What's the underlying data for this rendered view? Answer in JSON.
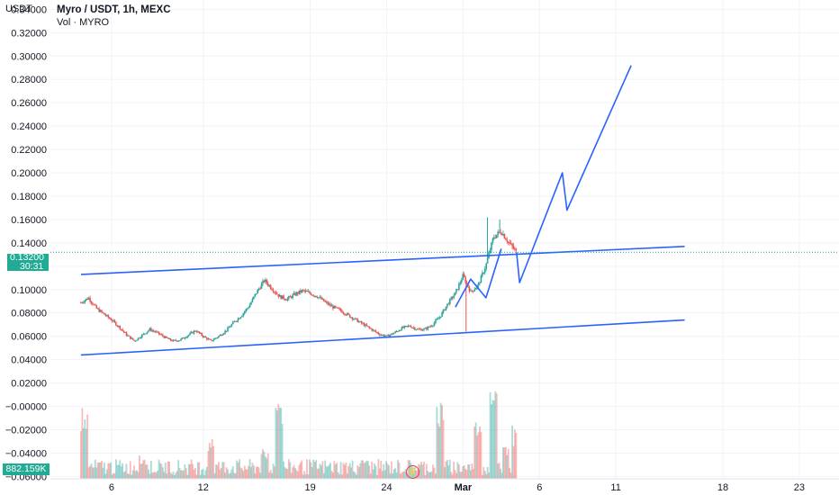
{
  "header": {
    "currency": "USDT",
    "title": "Myro / USDT, 1h, MEXC",
    "volume_label": "Vol · MYRO"
  },
  "price_tag": {
    "price": "0.13200",
    "countdown": "30:31"
  },
  "volume_tag": "882.159K",
  "colors": {
    "up": "#26a69a",
    "down": "#ef5350",
    "drawing": "#2962ff",
    "price_line": "#22ab94",
    "grid": "#f0f3fa"
  },
  "icons": {
    "replay": "lightning-icon"
  },
  "chart_data": {
    "type": "candlestick",
    "title": "Myro / USDT, 1h, MEXC",
    "y_axis": {
      "ticks": [
        "0.34000",
        "0.32000",
        "0.30000",
        "0.28000",
        "0.26000",
        "0.24000",
        "0.22000",
        "0.20000",
        "0.18000",
        "0.16000",
        "0.14000",
        "0.12000",
        "0.10000",
        "0.08000",
        "0.06000",
        "0.04000",
        "0.02000",
        "−0.00000",
        "−0.02000",
        "−0.04000",
        "−0.06000"
      ],
      "tick_values": [
        0.34,
        0.32,
        0.3,
        0.28,
        0.26,
        0.24,
        0.22,
        0.2,
        0.18,
        0.16,
        0.14,
        0.12,
        0.1,
        0.08,
        0.06,
        0.04,
        0.02,
        0.0,
        -0.02,
        -0.04,
        -0.06
      ],
      "range": [
        -0.062,
        0.348
      ]
    },
    "x_axis": {
      "ticks": [
        "6",
        "12",
        "19",
        "24",
        "Mar",
        "6",
        "11",
        "18",
        "23"
      ],
      "tick_days": [
        6,
        12,
        19,
        24,
        29,
        34,
        39,
        46,
        51
      ]
    },
    "current_price": 0.132,
    "price_path": [
      [
        4.0,
        0.089
      ],
      [
        4.5,
        0.093
      ],
      [
        5.0,
        0.084
      ],
      [
        5.5,
        0.079
      ],
      [
        6.0,
        0.074
      ],
      [
        6.5,
        0.068
      ],
      [
        7.0,
        0.061
      ],
      [
        7.5,
        0.056
      ],
      [
        8.0,
        0.061
      ],
      [
        8.5,
        0.066
      ],
      [
        9.0,
        0.063
      ],
      [
        9.5,
        0.059
      ],
      [
        10.0,
        0.056
      ],
      [
        10.5,
        0.057
      ],
      [
        11.0,
        0.061
      ],
      [
        11.5,
        0.065
      ],
      [
        12.0,
        0.06
      ],
      [
        12.5,
        0.056
      ],
      [
        13.0,
        0.06
      ],
      [
        13.5,
        0.065
      ],
      [
        14.0,
        0.072
      ],
      [
        14.5,
        0.078
      ],
      [
        15.0,
        0.086
      ],
      [
        15.5,
        0.098
      ],
      [
        16.0,
        0.108
      ],
      [
        16.5,
        0.101
      ],
      [
        17.0,
        0.094
      ],
      [
        17.5,
        0.092
      ],
      [
        18.0,
        0.096
      ],
      [
        18.5,
        0.099
      ],
      [
        19.0,
        0.097
      ],
      [
        19.5,
        0.094
      ],
      [
        20.0,
        0.089
      ],
      [
        20.5,
        0.085
      ],
      [
        21.0,
        0.082
      ],
      [
        21.5,
        0.078
      ],
      [
        22.0,
        0.074
      ],
      [
        22.5,
        0.07
      ],
      [
        23.0,
        0.066
      ],
      [
        23.5,
        0.062
      ],
      [
        24.0,
        0.06
      ],
      [
        24.5,
        0.063
      ],
      [
        25.0,
        0.067
      ],
      [
        25.5,
        0.069
      ],
      [
        26.0,
        0.066
      ],
      [
        26.5,
        0.066
      ],
      [
        27.0,
        0.07
      ],
      [
        27.5,
        0.077
      ],
      [
        28.0,
        0.088
      ],
      [
        28.5,
        0.097
      ],
      [
        29.0,
        0.112
      ],
      [
        29.5,
        0.098
      ],
      [
        30.0,
        0.104
      ],
      [
        30.5,
        0.121
      ],
      [
        31.0,
        0.145
      ],
      [
        31.5,
        0.15
      ],
      [
        32.0,
        0.14
      ],
      [
        32.5,
        0.132
      ]
    ],
    "projection_path": [
      [
        32.5,
        0.132
      ],
      [
        32.7,
        0.106
      ],
      [
        35.5,
        0.2
      ],
      [
        35.8,
        0.168
      ],
      [
        40.0,
        0.292
      ]
    ],
    "channel_lines": [
      {
        "name": "upper-trendline",
        "points": [
          [
            4.0,
            0.113
          ],
          [
            43.5,
            0.137
          ]
        ]
      },
      {
        "name": "lower-trendline",
        "points": [
          [
            4.0,
            0.044
          ],
          [
            43.5,
            0.074
          ]
        ]
      }
    ],
    "inner_path": [
      [
        28.5,
        0.085
      ],
      [
        29.5,
        0.109
      ],
      [
        30.5,
        0.093
      ],
      [
        31.5,
        0.135
      ]
    ],
    "volume_spikes": [
      [
        4.2,
        0.75
      ],
      [
        8.0,
        0.25
      ],
      [
        12.5,
        0.45
      ],
      [
        16.0,
        0.3
      ],
      [
        17.0,
        0.85
      ],
      [
        22.5,
        0.2
      ],
      [
        27.5,
        0.85
      ],
      [
        30.0,
        0.6
      ],
      [
        31.0,
        0.95
      ],
      [
        31.8,
        0.4
      ],
      [
        32.4,
        0.55
      ]
    ],
    "grid": true
  }
}
